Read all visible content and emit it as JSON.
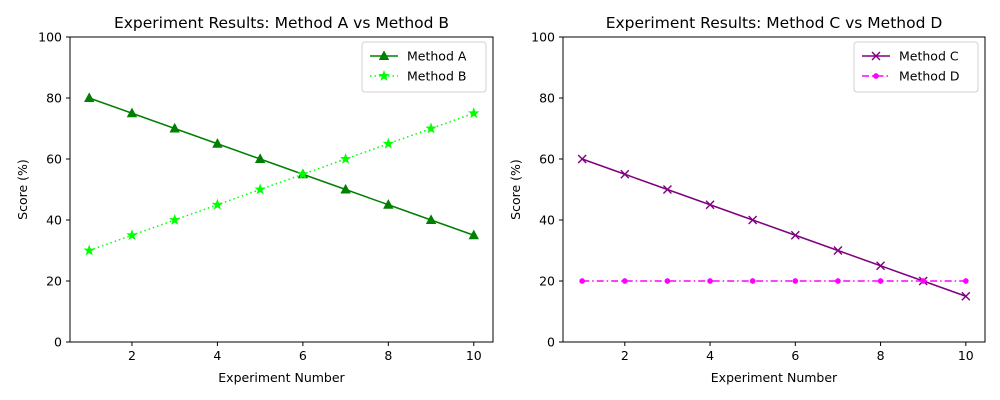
{
  "chart_data": [
    {
      "type": "line",
      "title": "Experiment Results: Method A vs Method B",
      "xlabel": "Experiment Number",
      "ylabel": "Score (%)",
      "xlim": [
        0.55,
        10.45
      ],
      "ylim": [
        0,
        100
      ],
      "xticks": [
        2,
        4,
        6,
        8,
        10
      ],
      "yticks": [
        0,
        20,
        40,
        60,
        80,
        100
      ],
      "grid": false,
      "legend_position": "top-right",
      "x": [
        1,
        2,
        3,
        4,
        5,
        6,
        7,
        8,
        9,
        10
      ],
      "series": [
        {
          "name": "Method A",
          "values": [
            80,
            75,
            70,
            65,
            60,
            55,
            50,
            45,
            40,
            35
          ],
          "color": "#008000",
          "linestyle": "solid",
          "marker": "triangle"
        },
        {
          "name": "Method B",
          "values": [
            30,
            35,
            40,
            45,
            50,
            55,
            60,
            65,
            70,
            75
          ],
          "color": "#00ff00",
          "linestyle": "dotted",
          "marker": "star"
        }
      ]
    },
    {
      "type": "line",
      "title": "Experiment Results: Method C vs Method D",
      "xlabel": "Experiment Number",
      "ylabel": "Score (%)",
      "xlim": [
        0.55,
        10.45
      ],
      "ylim": [
        0,
        100
      ],
      "xticks": [
        2,
        4,
        6,
        8,
        10
      ],
      "yticks": [
        0,
        20,
        40,
        60,
        80,
        100
      ],
      "grid": false,
      "legend_position": "top-right",
      "x": [
        1,
        2,
        3,
        4,
        5,
        6,
        7,
        8,
        9,
        10
      ],
      "series": [
        {
          "name": "Method C",
          "values": [
            60,
            55,
            50,
            45,
            40,
            35,
            30,
            25,
            20,
            15
          ],
          "color": "#800080",
          "linestyle": "solid",
          "marker": "x"
        },
        {
          "name": "Method D",
          "values": [
            20,
            20,
            20,
            20,
            20,
            20,
            20,
            20,
            20,
            20
          ],
          "color": "#ff00ff",
          "linestyle": "dashdot",
          "marker": "point"
        }
      ]
    }
  ]
}
